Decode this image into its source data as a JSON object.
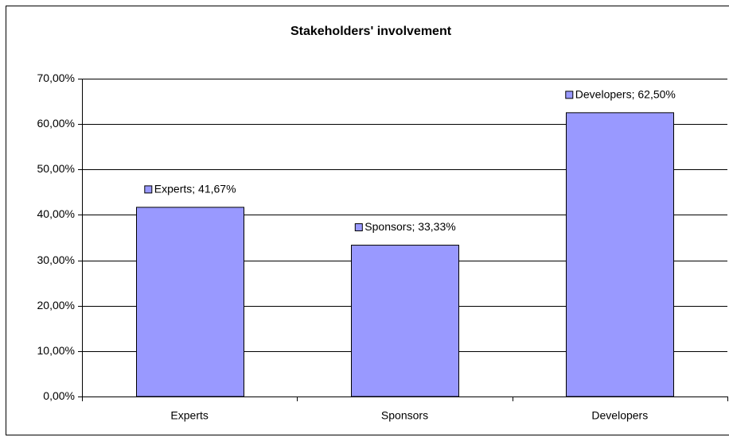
{
  "chart_data": {
    "type": "bar",
    "title": "Stakeholders' involvement",
    "categories": [
      "Experts",
      "Sponsors",
      "Developers"
    ],
    "values": [
      41.67,
      33.33,
      62.5
    ],
    "value_labels": [
      "Experts; 41,67%",
      "Sponsors; 33,33%",
      "Developers; 62,50%"
    ],
    "color": "#9999ff",
    "ylim": [
      0,
      70
    ],
    "yticks": [
      {
        "value": 0,
        "label": "0,00%"
      },
      {
        "value": 10,
        "label": "10,00%"
      },
      {
        "value": 20,
        "label": "20,00%"
      },
      {
        "value": 30,
        "label": "30,00%"
      },
      {
        "value": 40,
        "label": "40,00%"
      },
      {
        "value": 50,
        "label": "50,00%"
      },
      {
        "value": 60,
        "label": "60,00%"
      },
      {
        "value": 70,
        "label": "70,00%"
      }
    ],
    "grid": true
  }
}
